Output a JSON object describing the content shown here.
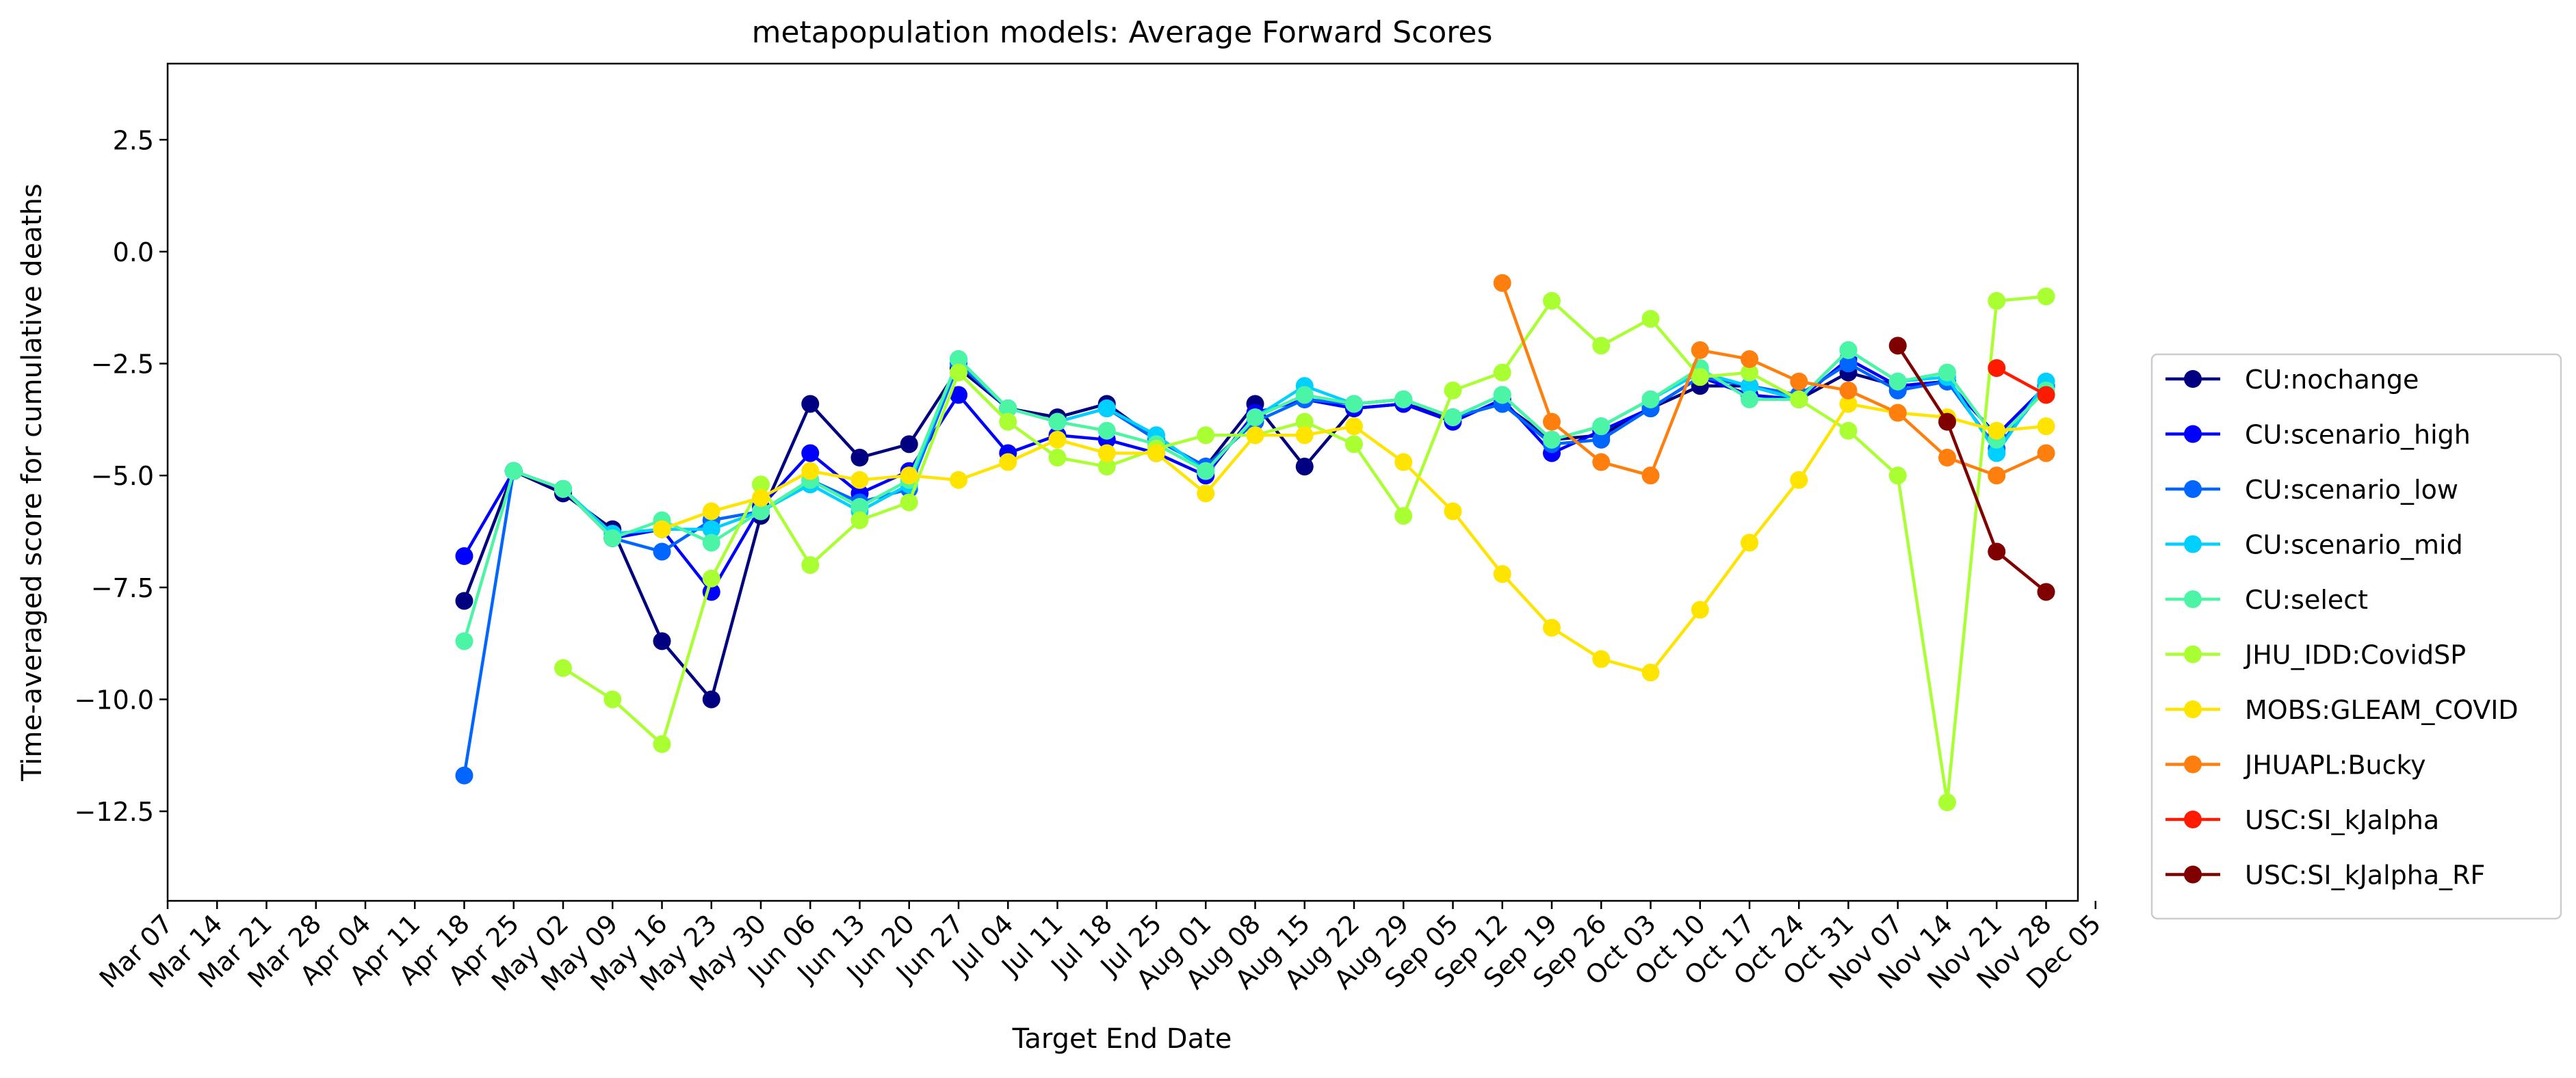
{
  "chart_data": {
    "type": "line",
    "title": "metapopulation models: Average Forward Scores",
    "xlabel": "Target End Date",
    "ylabel": "Time-averaged score for cumulative deaths",
    "ylim": [
      -14.5,
      4.2
    ],
    "yticks": [
      2.5,
      0.0,
      -2.5,
      -5.0,
      -7.5,
      -10.0,
      -12.5
    ],
    "ytick_labels": [
      "2.5",
      "0.0",
      "−2.5",
      "−5.0",
      "−7.5",
      "−10.0",
      "−12.5"
    ],
    "categories": [
      "Mar 07",
      "Mar 14",
      "Mar 21",
      "Mar 28",
      "Apr 04",
      "Apr 11",
      "Apr 18",
      "Apr 25",
      "May 02",
      "May 09",
      "May 16",
      "May 23",
      "May 30",
      "Jun 06",
      "Jun 13",
      "Jun 20",
      "Jun 27",
      "Jul 04",
      "Jul 11",
      "Jul 18",
      "Jul 25",
      "Aug 01",
      "Aug 08",
      "Aug 15",
      "Aug 22",
      "Aug 29",
      "Sep 05",
      "Sep 12",
      "Sep 19",
      "Sep 26",
      "Oct 03",
      "Oct 10",
      "Oct 17",
      "Oct 24",
      "Oct 31",
      "Nov 07",
      "Nov 14",
      "Nov 21",
      "Nov 28",
      "Dec 05"
    ],
    "grid": false,
    "legend_position": "center-right, outside plot",
    "series": [
      {
        "name": "CU:nochange",
        "color": "#000080",
        "values": [
          null,
          null,
          null,
          null,
          null,
          null,
          -7.8,
          -4.9,
          -5.4,
          -6.2,
          -8.7,
          -10.0,
          -5.9,
          -3.4,
          -4.6,
          -4.3,
          -2.6,
          -3.5,
          -3.7,
          -3.4,
          -4.2,
          -4.8,
          -3.4,
          -4.8,
          -3.5,
          -3.4,
          -3.7,
          -3.4,
          -4.2,
          -4.1,
          -3.5,
          -3.0,
          -3.0,
          -3.3,
          -2.7,
          -3.0,
          -2.9,
          -4.1,
          -3.0,
          null
        ]
      },
      {
        "name": "CU:scenario_high",
        "color": "#0000ff",
        "values": [
          null,
          null,
          null,
          null,
          null,
          null,
          -6.8,
          -4.9,
          -5.3,
          -6.4,
          -6.2,
          -7.6,
          -5.7,
          -4.5,
          -5.4,
          -4.9,
          -3.2,
          -4.5,
          -4.1,
          -4.2,
          -4.5,
          -5.0,
          -3.6,
          -3.3,
          -3.5,
          -3.4,
          -3.8,
          -3.3,
          -4.5,
          -4.0,
          -3.5,
          -2.8,
          -3.2,
          -3.3,
          -2.4,
          -3.0,
          -2.9,
          -4.1,
          -3.0,
          null
        ]
      },
      {
        "name": "CU:scenario_low",
        "color": "#0066ff",
        "values": [
          null,
          null,
          null,
          null,
          null,
          null,
          -11.7,
          -4.9,
          -5.3,
          -6.4,
          -6.7,
          -6.0,
          -5.8,
          -5.1,
          -5.6,
          -5.3,
          -2.5,
          -3.5,
          -3.8,
          -3.5,
          -4.2,
          -4.8,
          -3.8,
          -3.3,
          -3.4,
          -3.3,
          -3.7,
          -3.4,
          -4.3,
          -4.2,
          -3.5,
          -2.8,
          -3.0,
          -3.2,
          -2.5,
          -3.1,
          -2.9,
          -4.4,
          -3.0,
          null
        ]
      },
      {
        "name": "CU:scenario_mid",
        "color": "#00d0ff",
        "values": [
          null,
          null,
          null,
          null,
          null,
          null,
          null,
          -4.9,
          -5.3,
          -6.3,
          -6.2,
          -6.2,
          -5.8,
          -5.2,
          -5.8,
          -5.2,
          -2.4,
          -3.5,
          -3.8,
          -3.5,
          -4.1,
          -4.9,
          -3.7,
          -3.0,
          -3.4,
          -3.3,
          -3.7,
          -3.2,
          -4.2,
          -3.9,
          -3.3,
          -2.7,
          -3.0,
          -3.3,
          -2.2,
          -2.9,
          -2.8,
          -4.5,
          -2.9,
          null
        ]
      },
      {
        "name": "CU:select",
        "color": "#4cf5a6",
        "values": [
          null,
          null,
          null,
          null,
          null,
          null,
          -8.7,
          -4.9,
          -5.3,
          -6.4,
          -6.0,
          -6.5,
          -5.8,
          -5.1,
          -5.7,
          -5.1,
          -2.4,
          -3.5,
          -3.8,
          -4.0,
          -4.3,
          -4.9,
          -3.7,
          -3.2,
          -3.4,
          -3.3,
          -3.7,
          -3.2,
          -4.2,
          -3.9,
          -3.3,
          -2.6,
          -3.3,
          -3.3,
          -2.2,
          -2.9,
          -2.7,
          -4.2,
          -3.1,
          null
        ]
      },
      {
        "name": "JHU_IDD:CovidSP",
        "color": "#aaff33",
        "values": [
          null,
          null,
          null,
          null,
          null,
          null,
          null,
          null,
          -9.3,
          -10.0,
          -11.0,
          -7.3,
          -5.2,
          -7.0,
          -6.0,
          -5.6,
          -2.7,
          -3.8,
          -4.6,
          -4.8,
          -4.4,
          -4.1,
          -4.1,
          -3.8,
          -4.3,
          -5.9,
          -3.1,
          -2.7,
          -1.1,
          -2.1,
          -1.5,
          -2.8,
          -2.7,
          -3.3,
          -4.0,
          -5.0,
          -12.3,
          -1.1,
          -1.0,
          null
        ]
      },
      {
        "name": "MOBS:GLEAM_COVID",
        "color": "#ffe400",
        "values": [
          null,
          null,
          null,
          null,
          null,
          null,
          null,
          null,
          null,
          null,
          -6.2,
          -5.8,
          -5.5,
          -4.9,
          -5.1,
          -5.0,
          -5.1,
          -4.7,
          -4.2,
          -4.5,
          -4.5,
          -5.4,
          -4.1,
          -4.1,
          -3.9,
          -4.7,
          -5.8,
          -7.2,
          -8.4,
          -9.1,
          -9.4,
          -8.0,
          -6.5,
          -5.1,
          -3.4,
          -3.6,
          -3.7,
          -4.0,
          -3.9,
          null
        ]
      },
      {
        "name": "JHUAPL:Bucky",
        "color": "#ff7f0e",
        "values": [
          null,
          null,
          null,
          null,
          null,
          null,
          null,
          null,
          null,
          null,
          null,
          null,
          null,
          null,
          null,
          null,
          null,
          null,
          null,
          null,
          null,
          null,
          null,
          null,
          null,
          null,
          null,
          -0.7,
          -3.8,
          -4.7,
          -5.0,
          -2.2,
          -2.4,
          -2.9,
          -3.1,
          -3.6,
          -4.6,
          -5.0,
          -4.5,
          null
        ]
      },
      {
        "name": "USC:SI_kJalpha",
        "color": "#ff1a00",
        "values": [
          null,
          null,
          null,
          null,
          null,
          null,
          null,
          null,
          null,
          null,
          null,
          null,
          null,
          null,
          null,
          null,
          null,
          null,
          null,
          null,
          null,
          null,
          null,
          null,
          null,
          null,
          null,
          null,
          null,
          null,
          null,
          null,
          null,
          null,
          null,
          null,
          null,
          -2.6,
          -3.2,
          null
        ]
      },
      {
        "name": "USC:SI_kJalpha_RF",
        "color": "#800000",
        "values": [
          null,
          null,
          null,
          null,
          null,
          null,
          null,
          null,
          null,
          null,
          null,
          null,
          null,
          null,
          null,
          null,
          null,
          null,
          null,
          null,
          null,
          null,
          null,
          null,
          null,
          null,
          null,
          null,
          null,
          null,
          null,
          null,
          null,
          null,
          null,
          -2.1,
          -3.8,
          -6.7,
          -7.6,
          null
        ]
      }
    ]
  }
}
